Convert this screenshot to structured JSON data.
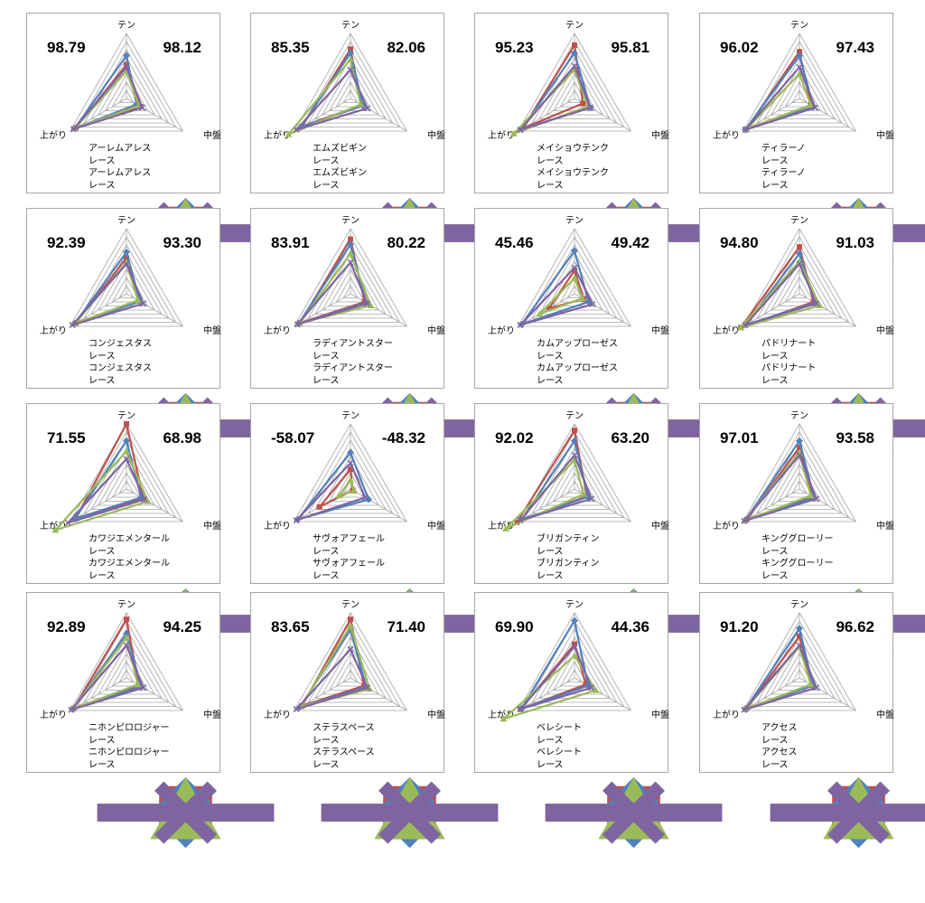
{
  "colors": {
    "red": "#c0504d",
    "blue": "#4f81bd",
    "green": "#9bbb59",
    "purple": "#8064a2",
    "grid": "#a6a6a6"
  },
  "axis_labels": [
    "テン",
    "中盤",
    "上がり"
  ],
  "chart_data": [
    {
      "type": "radar",
      "score_left": "98.79",
      "score_right": "98.12",
      "axes": [
        "テン",
        "中盤",
        "上がり"
      ],
      "ylim": [
        0,
        100
      ],
      "series": [
        {
          "name": "アーレムアレス",
          "marker": "square",
          "values": [
            52,
            25,
            90
          ]
        },
        {
          "name": "レース",
          "marker": "diamond",
          "values": [
            66,
            18,
            92
          ]
        },
        {
          "name": "アーレムアレス",
          "marker": "triangle",
          "values": [
            42,
            22,
            92
          ]
        },
        {
          "name": "レース",
          "marker": "x",
          "values": [
            48,
            28,
            94
          ]
        }
      ]
    },
    {
      "type": "radar",
      "score_left": "85.35",
      "score_right": "82.06",
      "axes": [
        "テン",
        "中盤",
        "上がり"
      ],
      "ylim": [
        0,
        100
      ],
      "series": [
        {
          "name": "エムズビギン",
          "marker": "square",
          "values": [
            76,
            20,
            86
          ]
        },
        {
          "name": "レース",
          "marker": "diamond",
          "values": [
            70,
            22,
            88
          ]
        },
        {
          "name": "エムズビギン",
          "marker": "triangle",
          "values": [
            60,
            18,
            110
          ]
        },
        {
          "name": "レース",
          "marker": "x",
          "values": [
            44,
            30,
            96
          ]
        }
      ]
    },
    {
      "type": "radar",
      "score_left": "95.23",
      "score_right": "95.81",
      "axes": [
        "テン",
        "中盤",
        "上がり"
      ],
      "ylim": [
        0,
        100
      ],
      "series": [
        {
          "name": "メイショウテンク",
          "marker": "square",
          "values": [
            82,
            15,
            92
          ]
        },
        {
          "name": "レース",
          "marker": "diamond",
          "values": [
            70,
            28,
            94
          ]
        },
        {
          "name": "メイショウテンク",
          "marker": "triangle",
          "values": [
            44,
            24,
            108
          ]
        },
        {
          "name": "レース",
          "marker": "x",
          "values": [
            50,
            28,
            96
          ]
        }
      ]
    },
    {
      "type": "radar",
      "score_left": "96.02",
      "score_right": "97.43",
      "axes": [
        "テン",
        "中盤",
        "上がり"
      ],
      "ylim": [
        0,
        100
      ],
      "series": [
        {
          "name": "ティラーノ",
          "marker": "square",
          "values": [
            72,
            20,
            94
          ]
        },
        {
          "name": "レース",
          "marker": "diamond",
          "values": [
            66,
            25,
            96
          ]
        },
        {
          "name": "ティラーノ",
          "marker": "triangle",
          "values": [
            38,
            20,
            94
          ]
        },
        {
          "name": "レース",
          "marker": "x",
          "values": [
            48,
            28,
            96
          ]
        }
      ]
    },
    {
      "type": "radar",
      "score_left": "92.39",
      "score_right": "93.30",
      "axes": [
        "テン",
        "中盤",
        "上がり"
      ],
      "ylim": [
        0,
        100
      ],
      "series": [
        {
          "name": "コンジェスタス",
          "marker": "square",
          "values": [
            55,
            22,
            90
          ]
        },
        {
          "name": "レース",
          "marker": "diamond",
          "values": [
            64,
            24,
            92
          ]
        },
        {
          "name": "コンジェスタス",
          "marker": "triangle",
          "values": [
            48,
            20,
            92
          ]
        },
        {
          "name": "レース",
          "marker": "x",
          "values": [
            46,
            30,
            96
          ]
        }
      ]
    },
    {
      "type": "radar",
      "score_left": "83.91",
      "score_right": "80.22",
      "axes": [
        "テン",
        "中盤",
        "上がり"
      ],
      "ylim": [
        0,
        100
      ],
      "series": [
        {
          "name": "ラディアントスター",
          "marker": "square",
          "values": [
            84,
            25,
            90
          ]
        },
        {
          "name": "レース",
          "marker": "diamond",
          "values": [
            76,
            28,
            92
          ]
        },
        {
          "name": "ラディアントスター",
          "marker": "triangle",
          "values": [
            62,
            36,
            90
          ]
        },
        {
          "name": "レース",
          "marker": "x",
          "values": [
            48,
            30,
            94
          ]
        }
      ]
    },
    {
      "type": "radar",
      "score_left": "45.46",
      "score_right": "49.42",
      "axes": [
        "テン",
        "中盤",
        "上がり"
      ],
      "ylim": [
        0,
        100
      ],
      "series": [
        {
          "name": "カムアップローゼス",
          "marker": "square",
          "values": [
            36,
            16,
            45
          ]
        },
        {
          "name": "レース",
          "marker": "diamond",
          "values": [
            66,
            25,
            94
          ]
        },
        {
          "name": "カムアップローゼス",
          "marker": "triangle",
          "values": [
            24,
            14,
            62
          ]
        },
        {
          "name": "レース",
          "marker": "x",
          "values": [
            40,
            32,
            96
          ]
        }
      ]
    },
    {
      "type": "radar",
      "score_left": "94.80",
      "score_right": "91.03",
      "axes": [
        "テン",
        "中盤",
        "上がり"
      ],
      "ylim": [
        0,
        100
      ],
      "series": [
        {
          "name": "パドリナート",
          "marker": "square",
          "values": [
            72,
            25,
            104
          ]
        },
        {
          "name": "レース",
          "marker": "diamond",
          "values": [
            62,
            28,
            96
          ]
        },
        {
          "name": "パドリナート",
          "marker": "triangle",
          "values": [
            50,
            36,
            104
          ]
        },
        {
          "name": "レース",
          "marker": "x",
          "values": [
            46,
            30,
            96
          ]
        }
      ]
    },
    {
      "type": "radar",
      "score_left": "71.55",
      "score_right": "68.98",
      "axes": [
        "テン",
        "中盤",
        "上がり"
      ],
      "ylim": [
        0,
        100
      ],
      "series": [
        {
          "name": "カワジエメンタール",
          "marker": "square",
          "values": [
            100,
            30,
            90
          ]
        },
        {
          "name": "レース",
          "marker": "diamond",
          "values": [
            74,
            26,
            92
          ]
        },
        {
          "name": "カワジエメンタール",
          "marker": "triangle",
          "values": [
            58,
            38,
            126
          ]
        },
        {
          "name": "レース",
          "marker": "x",
          "values": [
            46,
            32,
            104
          ]
        }
      ]
    },
    {
      "type": "radar",
      "score_left": "-58.07",
      "score_right": "-48.32",
      "axes": [
        "テン",
        "中盤",
        "上がり"
      ],
      "ylim": [
        0,
        100
      ],
      "series": [
        {
          "name": "サヴォアフェール",
          "marker": "square",
          "values": [
            30,
            4,
            55
          ]
        },
        {
          "name": "レース",
          "marker": "diamond",
          "values": [
            56,
            32,
            94
          ]
        },
        {
          "name": "サヴォアフェール",
          "marker": "triangle",
          "values": [
            14,
            6,
            20
          ]
        },
        {
          "name": "レース",
          "marker": "x",
          "values": [
            40,
            26,
            96
          ]
        }
      ]
    },
    {
      "type": "radar",
      "score_left": "92.02",
      "score_right": "63.20",
      "axes": [
        "テン",
        "中盤",
        "上がり"
      ],
      "ylim": [
        0,
        100
      ],
      "series": [
        {
          "name": "ブリガンティン",
          "marker": "square",
          "values": [
            90,
            22,
            102
          ]
        },
        {
          "name": "レース",
          "marker": "diamond",
          "values": [
            74,
            24,
            94
          ]
        },
        {
          "name": "ブリガンティン",
          "marker": "triangle",
          "values": [
            44,
            16,
            122
          ]
        },
        {
          "name": "レース",
          "marker": "x",
          "values": [
            52,
            30,
            96
          ]
        }
      ]
    },
    {
      "type": "radar",
      "score_left": "97.01",
      "score_right": "93.58",
      "axes": [
        "テン",
        "中盤",
        "上がり"
      ],
      "ylim": [
        0,
        100
      ],
      "series": [
        {
          "name": "キンググローリー",
          "marker": "square",
          "values": [
            64,
            24,
            94
          ]
        },
        {
          "name": "レース",
          "marker": "diamond",
          "values": [
            74,
            26,
            96
          ]
        },
        {
          "name": "キンググローリー",
          "marker": "triangle",
          "values": [
            56,
            20,
            98
          ]
        },
        {
          "name": "レース",
          "marker": "x",
          "values": [
            52,
            30,
            98
          ]
        }
      ]
    },
    {
      "type": "radar",
      "score_left": "92.89",
      "score_right": "94.25",
      "axes": [
        "テン",
        "中盤",
        "上がり"
      ],
      "ylim": [
        0,
        100
      ],
      "series": [
        {
          "name": "ニホンピロロジャー",
          "marker": "square",
          "values": [
            90,
            22,
            94
          ]
        },
        {
          "name": "レース",
          "marker": "diamond",
          "values": [
            68,
            26,
            96
          ]
        },
        {
          "name": "ニホンピロロジャー",
          "marker": "triangle",
          "values": [
            62,
            20,
            96
          ]
        },
        {
          "name": "レース",
          "marker": "x",
          "values": [
            50,
            30,
            98
          ]
        }
      ]
    },
    {
      "type": "radar",
      "score_left": "83.65",
      "score_right": "71.40",
      "axes": [
        "テン",
        "中盤",
        "上がり"
      ],
      "ylim": [
        0,
        100
      ],
      "series": [
        {
          "name": "ステラスペース",
          "marker": "square",
          "values": [
            90,
            24,
            86
          ]
        },
        {
          "name": "レース",
          "marker": "diamond",
          "values": [
            74,
            28,
            90
          ]
        },
        {
          "name": "ステラスペース",
          "marker": "triangle",
          "values": [
            80,
            34,
            88
          ]
        },
        {
          "name": "レース",
          "marker": "x",
          "values": [
            44,
            30,
            96
          ]
        }
      ]
    },
    {
      "type": "radar",
      "score_left": "69.90",
      "score_right": "44.36",
      "axes": [
        "テン",
        "中盤",
        "上がり"
      ],
      "ylim": [
        0,
        100
      ],
      "series": [
        {
          "name": "ベレシート",
          "marker": "square",
          "values": [
            52,
            20,
            96
          ]
        },
        {
          "name": "レース",
          "marker": "diamond",
          "values": [
            88,
            24,
            94
          ]
        },
        {
          "name": "ベレシート",
          "marker": "triangle",
          "values": [
            34,
            38,
            126
          ]
        },
        {
          "name": "レース",
          "marker": "x",
          "values": [
            48,
            30,
            96
          ]
        }
      ]
    },
    {
      "type": "radar",
      "score_left": "91.20",
      "score_right": "96.62",
      "axes": [
        "テン",
        "中盤",
        "上がり"
      ],
      "ylim": [
        0,
        100
      ],
      "series": [
        {
          "name": "アクセス",
          "marker": "square",
          "values": [
            64,
            22,
            94
          ]
        },
        {
          "name": "レース",
          "marker": "diamond",
          "values": [
            76,
            24,
            96
          ]
        },
        {
          "name": "アクセス",
          "marker": "triangle",
          "values": [
            48,
            20,
            96
          ]
        },
        {
          "name": "レース",
          "marker": "x",
          "values": [
            50,
            30,
            98
          ]
        }
      ]
    }
  ]
}
